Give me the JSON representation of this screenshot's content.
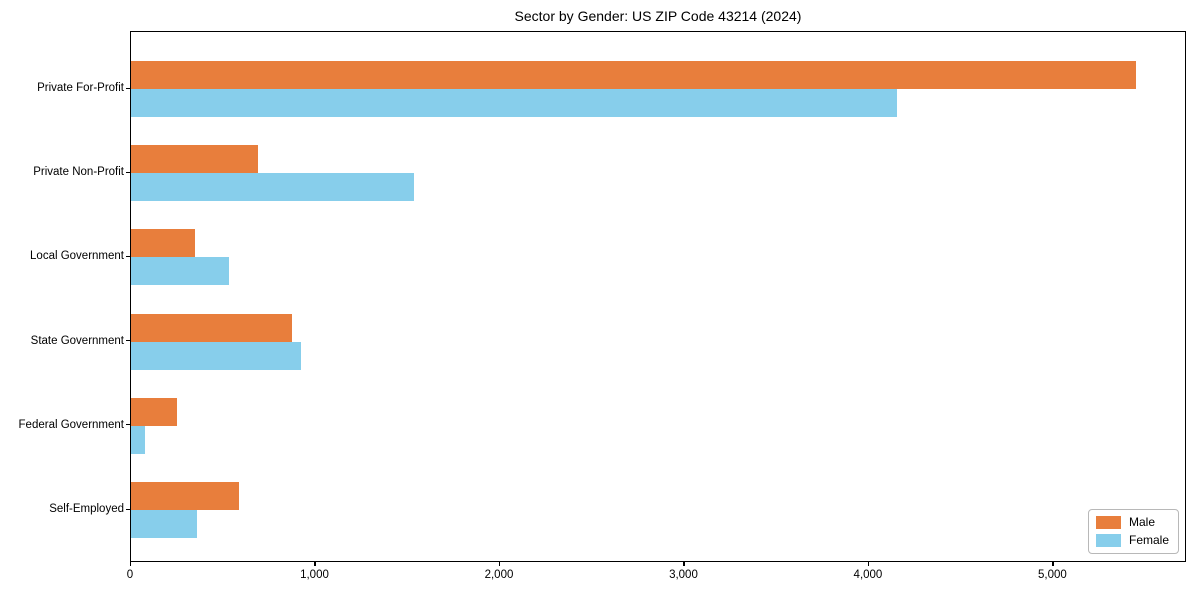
{
  "chart_data": {
    "type": "bar",
    "orientation": "horizontal",
    "title": "Sector by Gender: US ZIP Code 43214 (2024)",
    "categories": [
      "Private For-Profit",
      "Private Non-Profit",
      "Local Government",
      "State Government",
      "Federal Government",
      "Self-Employed"
    ],
    "series": [
      {
        "name": "Male",
        "color": "#e87e3c",
        "values": [
          5445,
          690,
          345,
          875,
          250,
          585
        ]
      },
      {
        "name": "Female",
        "color": "#87ceeb",
        "values": [
          4150,
          1535,
          530,
          920,
          75,
          360
        ]
      }
    ],
    "xlabel": "",
    "ylabel": "",
    "xlim": [
      0,
      5724
    ],
    "xticks": [
      0,
      1000,
      2000,
      3000,
      4000,
      5000
    ],
    "xtick_labels": [
      "0",
      "1,000",
      "2,000",
      "3,000",
      "4,000",
      "5,000"
    ],
    "grid": false,
    "legend_position": "lower right"
  }
}
